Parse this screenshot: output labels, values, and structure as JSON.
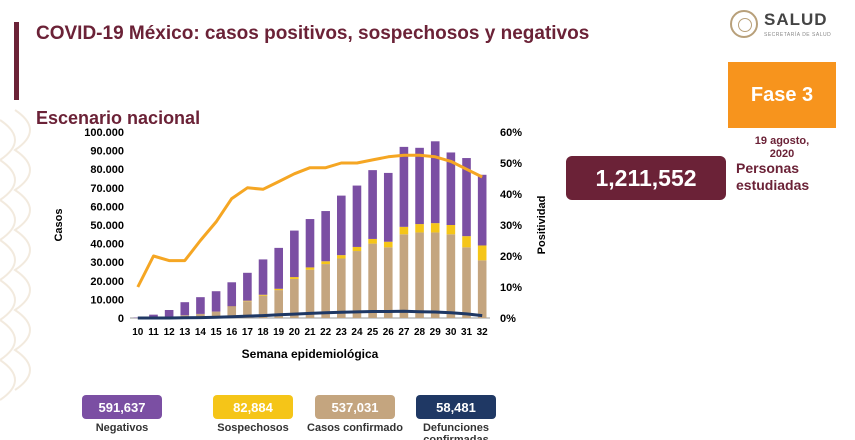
{
  "title": "COVID-19 México: casos positivos, sospechosos y negativos",
  "subtitle": "Escenario nacional",
  "logo_text": "SALUD",
  "logo_sub": "SECRETARÍA DE SALUD",
  "phase": "Fase 3",
  "date_line1": "19 agosto,",
  "date_line2": "2020",
  "people_count": "1,211,552",
  "people_label_1": "Personas",
  "people_label_2": "estudiadas",
  "stats": [
    {
      "value": "591,637",
      "label": "Negativos",
      "color": "#7b4fa3"
    },
    {
      "value": "82,884",
      "label": "Sospechosos",
      "color": "#f5c518"
    },
    {
      "value": "537,031",
      "label": "Casos confirmado",
      "color": "#c4a57f"
    },
    {
      "value": "58,481",
      "label": "Defunciones confirmadas",
      "color": "#1f3864"
    }
  ],
  "chart_data": {
    "type": "bar",
    "xlabel": "Semana epidemiológica",
    "ylabel": "Casos",
    "y2label": "Positividad",
    "ylim": [
      0,
      100000
    ],
    "y2lim": [
      0,
      60
    ],
    "ytick_labels": [
      "0",
      "10.000",
      "20.000",
      "30.000",
      "40.000",
      "50.000",
      "60.000",
      "70.000",
      "80.000",
      "90.000",
      "100.000"
    ],
    "y2tick_labels": [
      "0%",
      "10%",
      "20%",
      "30%",
      "40%",
      "50%",
      "60%"
    ],
    "categories": [
      "10",
      "11",
      "12",
      "13",
      "14",
      "15",
      "16",
      "17",
      "18",
      "19",
      "20",
      "21",
      "22",
      "23",
      "24",
      "25",
      "26",
      "27",
      "28",
      "29",
      "30",
      "31",
      "32"
    ],
    "stacked_series": [
      {
        "name": "Casos confirmados",
        "color": "#c4a57f",
        "values": [
          0,
          300,
          800,
          1500,
          2200,
          3300,
          6000,
          9000,
          12000,
          15000,
          21000,
          26000,
          29000,
          32000,
          36000,
          40000,
          38000,
          45000,
          46000,
          46000,
          45000,
          38000,
          31000
        ]
      },
      {
        "name": "Sospechosos",
        "color": "#f5c518",
        "values": [
          0,
          0,
          0,
          0,
          0,
          100,
          200,
          300,
          500,
          700,
          1000,
          1200,
          1500,
          1800,
          2200,
          2500,
          3000,
          4000,
          4500,
          5000,
          5000,
          6000,
          8000
        ]
      },
      {
        "name": "Negativos",
        "color": "#7b4fa3",
        "values": [
          200,
          1500,
          3500,
          7000,
          9000,
          11000,
          13000,
          15000,
          19000,
          22000,
          25000,
          26000,
          27000,
          32000,
          33000,
          37000,
          37000,
          43000,
          41000,
          44000,
          39000,
          42000,
          38000
        ]
      }
    ],
    "line_series": [
      {
        "name": "Defunciones confirmadas",
        "color": "#1f3864",
        "axis": "left",
        "values": [
          0,
          0,
          0,
          100,
          200,
          400,
          700,
          1000,
          1300,
          1700,
          2100,
          2500,
          2800,
          3100,
          3300,
          3500,
          3500,
          3600,
          3400,
          3200,
          2800,
          2200,
          1300
        ]
      },
      {
        "name": "Positividad",
        "color": "#f5a623",
        "axis": "right",
        "values": [
          10,
          20,
          18.5,
          18.5,
          25,
          31,
          38.5,
          42,
          41.5,
          44,
          46.5,
          48.5,
          48.5,
          50,
          50,
          51,
          52,
          52.5,
          52.5,
          52,
          50.5,
          48,
          45.5
        ]
      }
    ]
  }
}
